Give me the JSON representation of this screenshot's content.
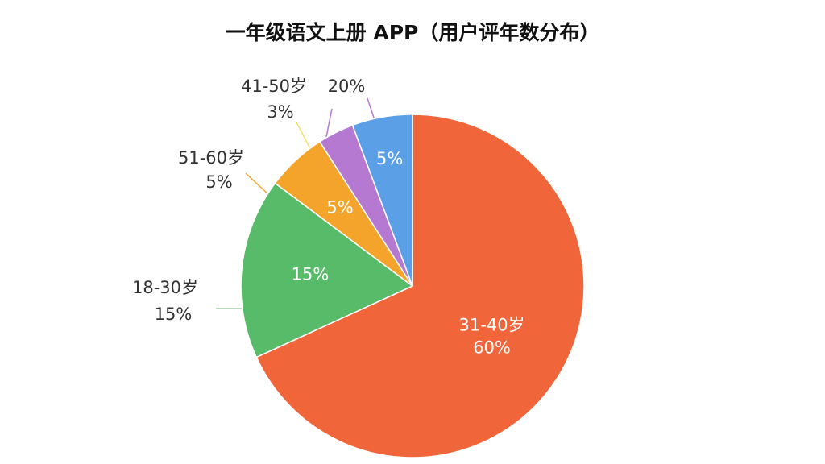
{
  "chart_data": {
    "type": "pie",
    "title": "一年级语文上册  APP（用户评年数分布）",
    "categories": [
      "31-40岁",
      "18-30岁",
      "51-60岁",
      "41-50岁",
      null
    ],
    "values": [
      60,
      15,
      5,
      3,
      5
    ],
    "value_labels": [
      "60%",
      "15%",
      "5%",
      "3%",
      "5%"
    ],
    "colors": [
      "#f0663a",
      "#58bb6a",
      "#f5a42b",
      "#b679d1",
      "#5b9fe6"
    ],
    "annotations": [
      "20%"
    ]
  }
}
